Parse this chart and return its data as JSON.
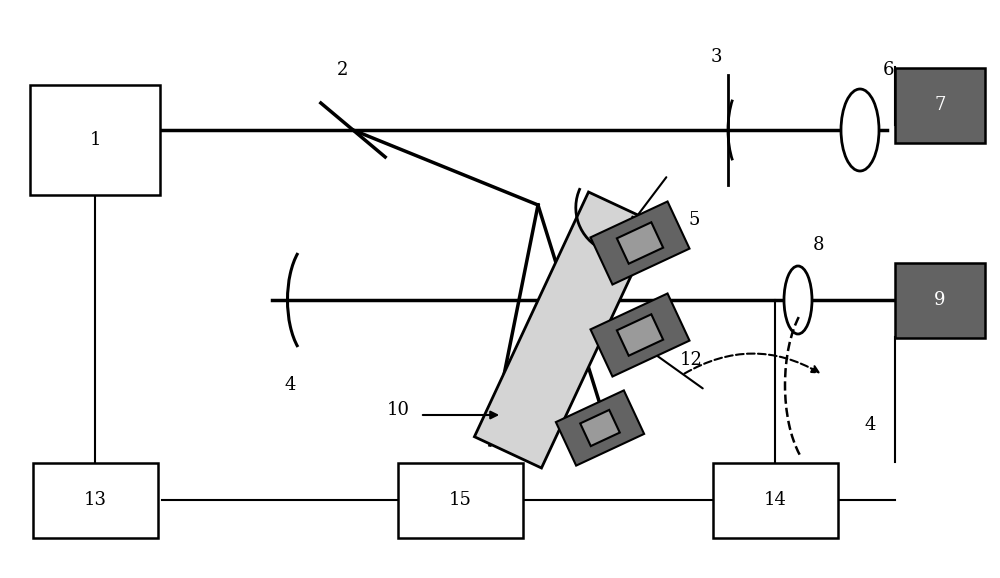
{
  "fig_width": 10.0,
  "fig_height": 5.78,
  "bg_color": "#ffffff",
  "line_color": "#000000",
  "dark_gray": "#636363",
  "light_gray": "#c8c8c8",
  "label_fontsize": 13
}
